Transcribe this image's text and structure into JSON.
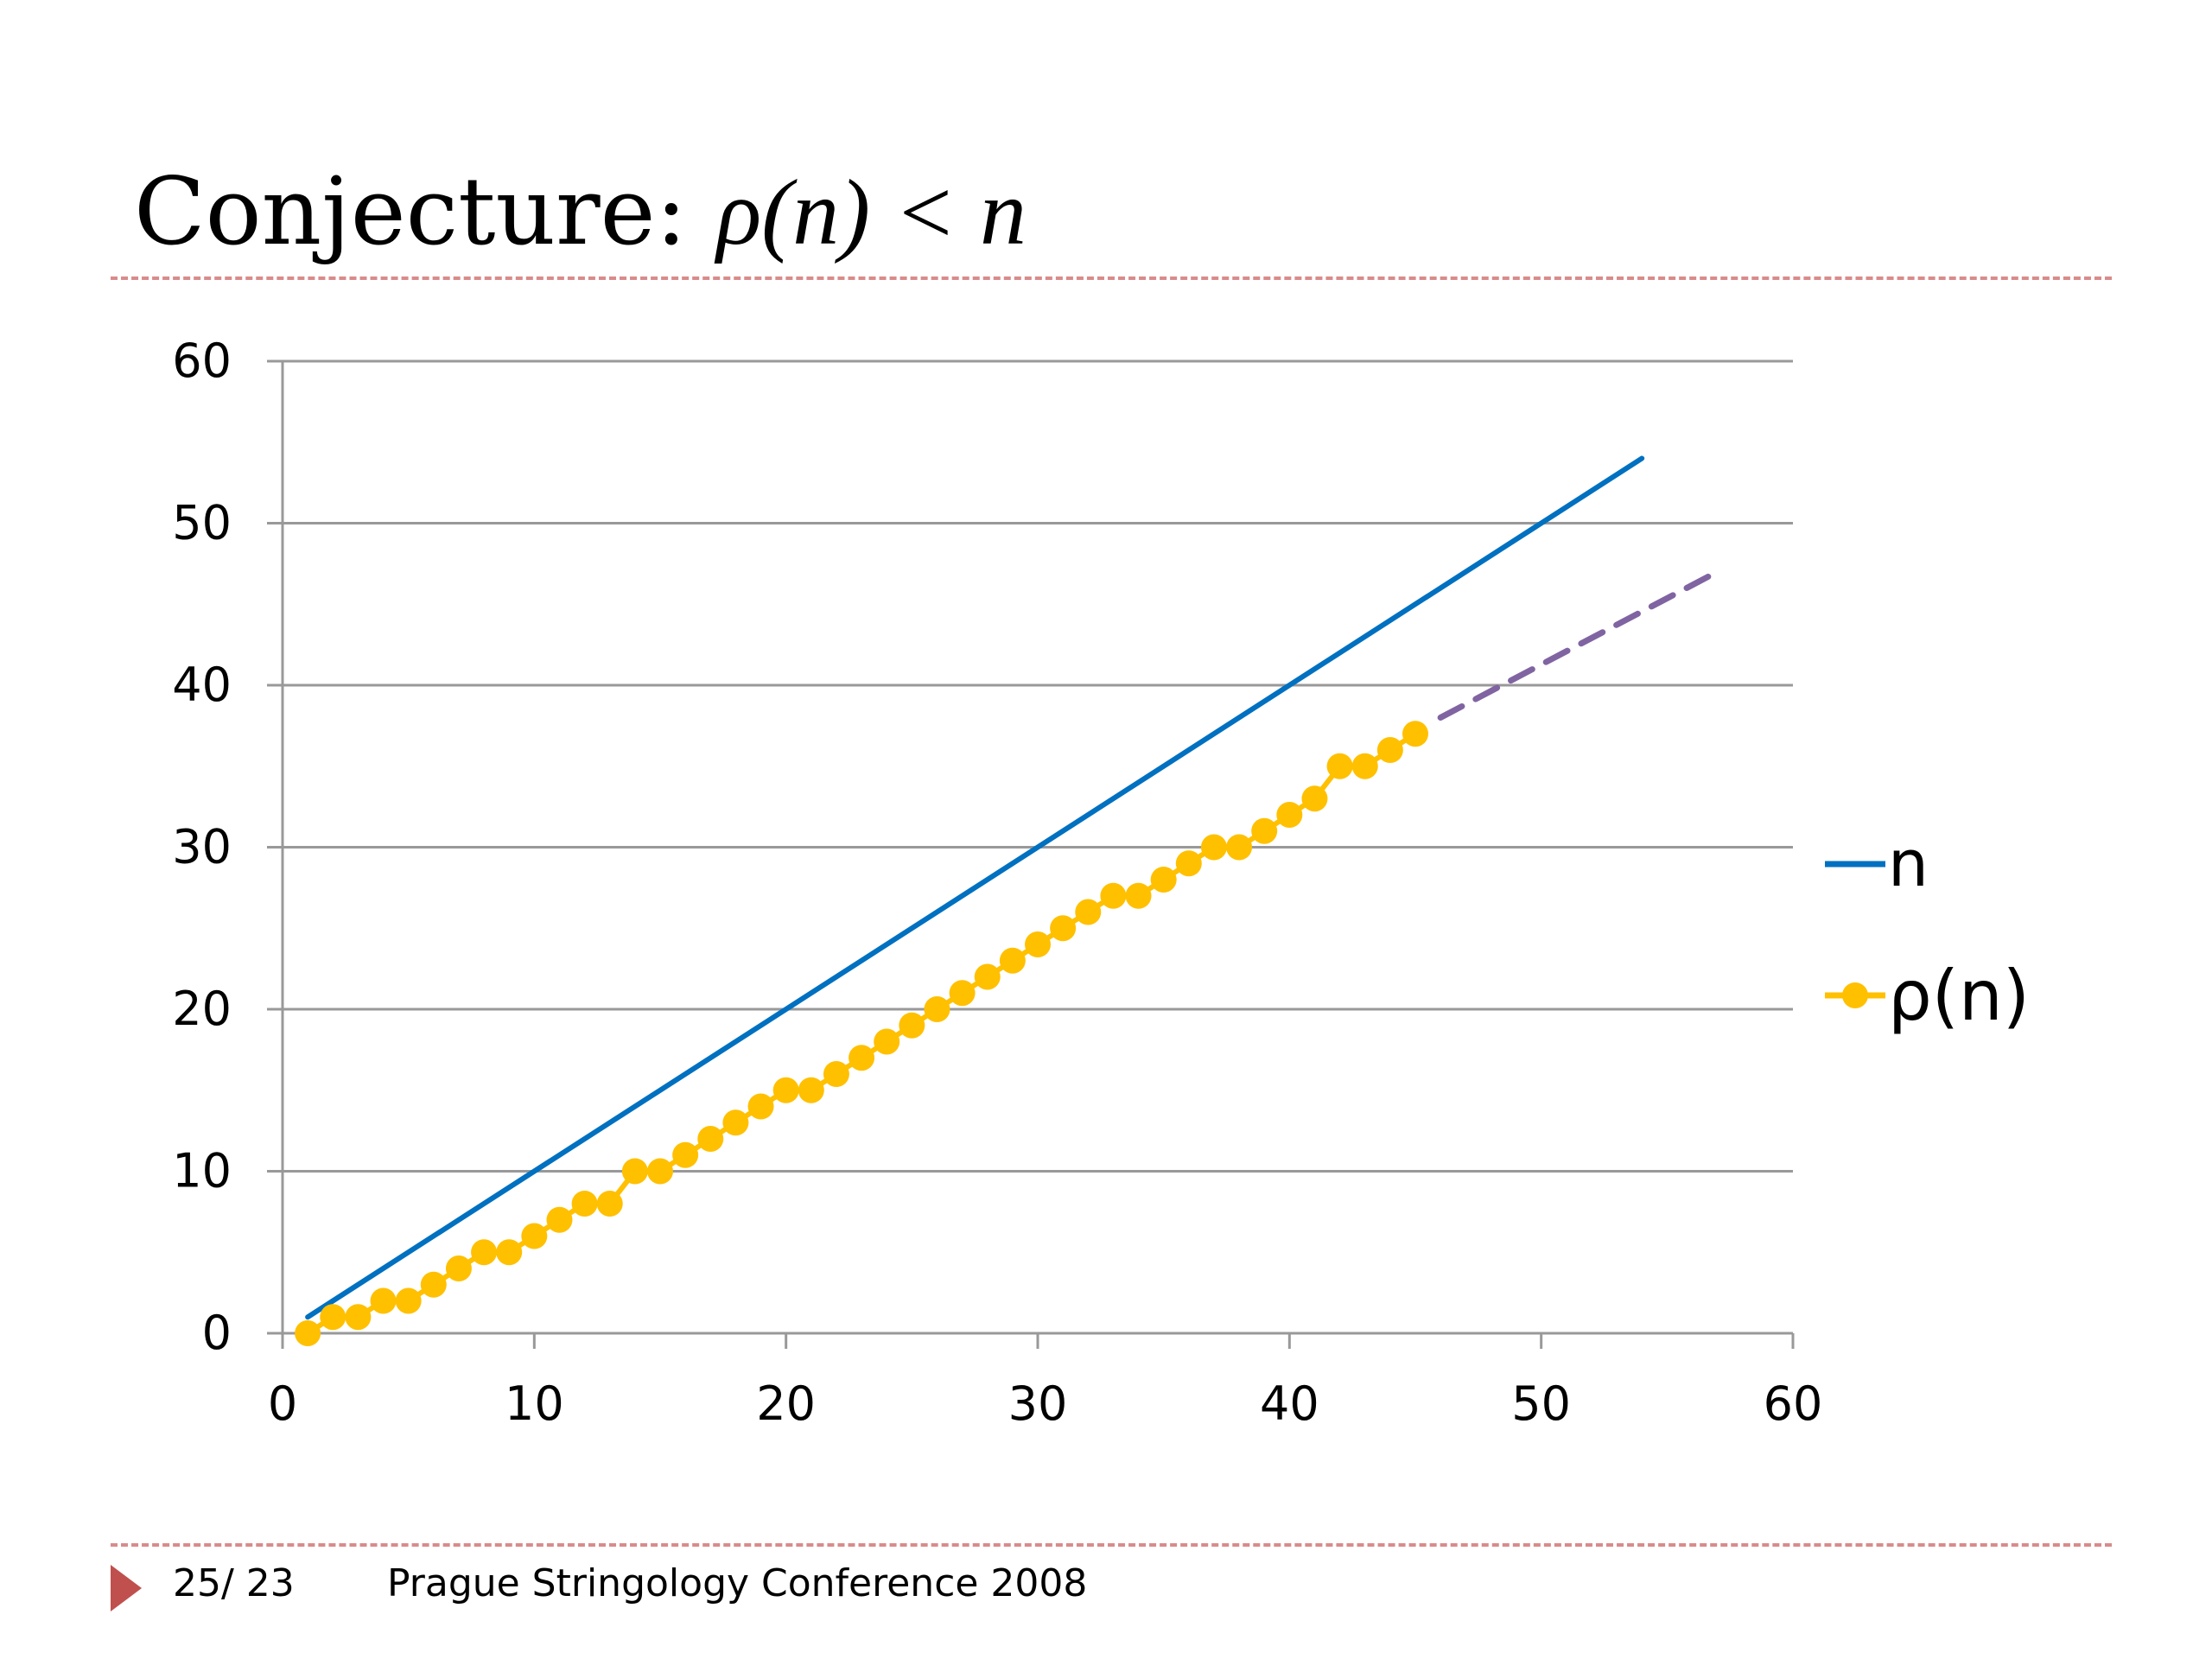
{
  "slide": {
    "title_text": "Conjecture:",
    "title_math": "ρ(n) < n",
    "page_number": "25/ 23",
    "conference": "Prague Stringology Conference 2008",
    "colors": {
      "n_series": "#0070c0",
      "rho_series": "#ffc000",
      "extrapolation": "#8064a2",
      "rule": "#d98b8b",
      "arrow": "#c0504d"
    }
  },
  "chart_data": {
    "type": "line",
    "title": "",
    "xlabel": "",
    "ylabel": "",
    "xlim": [
      0,
      60
    ],
    "ylim": [
      0,
      60
    ],
    "x_ticks": [
      0,
      10,
      20,
      30,
      40,
      50,
      60
    ],
    "y_ticks": [
      0,
      10,
      20,
      30,
      40,
      50,
      60
    ],
    "grid": "horizontal",
    "legend": "right",
    "series": [
      {
        "name": "n",
        "color": "#0070c0",
        "markers": false,
        "points": [
          [
            1,
            1
          ],
          [
            54,
            54
          ]
        ]
      },
      {
        "name": "ρ(n)",
        "color": "#ffc000",
        "markers": true,
        "x": [
          1,
          2,
          3,
          4,
          5,
          6,
          7,
          8,
          9,
          10,
          11,
          12,
          13,
          14,
          15,
          16,
          17,
          18,
          19,
          20,
          21,
          22,
          23,
          24,
          25,
          26,
          27,
          28,
          29,
          30,
          31,
          32,
          33,
          34,
          35,
          36,
          37,
          38,
          39,
          40,
          41,
          42,
          43,
          44,
          45
        ],
        "y": [
          0,
          1,
          1,
          2,
          2,
          3,
          4,
          5,
          5,
          6,
          7,
          8,
          8,
          10,
          10,
          11,
          12,
          13,
          14,
          15,
          15,
          16,
          17,
          18,
          19,
          20,
          21,
          22,
          23,
          24,
          25,
          26,
          27,
          27,
          28,
          29,
          30,
          30,
          31,
          32,
          33,
          35,
          35,
          36,
          37
        ]
      },
      {
        "name": "",
        "color": "#8064a2",
        "style": "dashed",
        "markers": false,
        "points": [
          [
            46,
            38
          ],
          [
            57,
            47
          ]
        ]
      }
    ]
  }
}
